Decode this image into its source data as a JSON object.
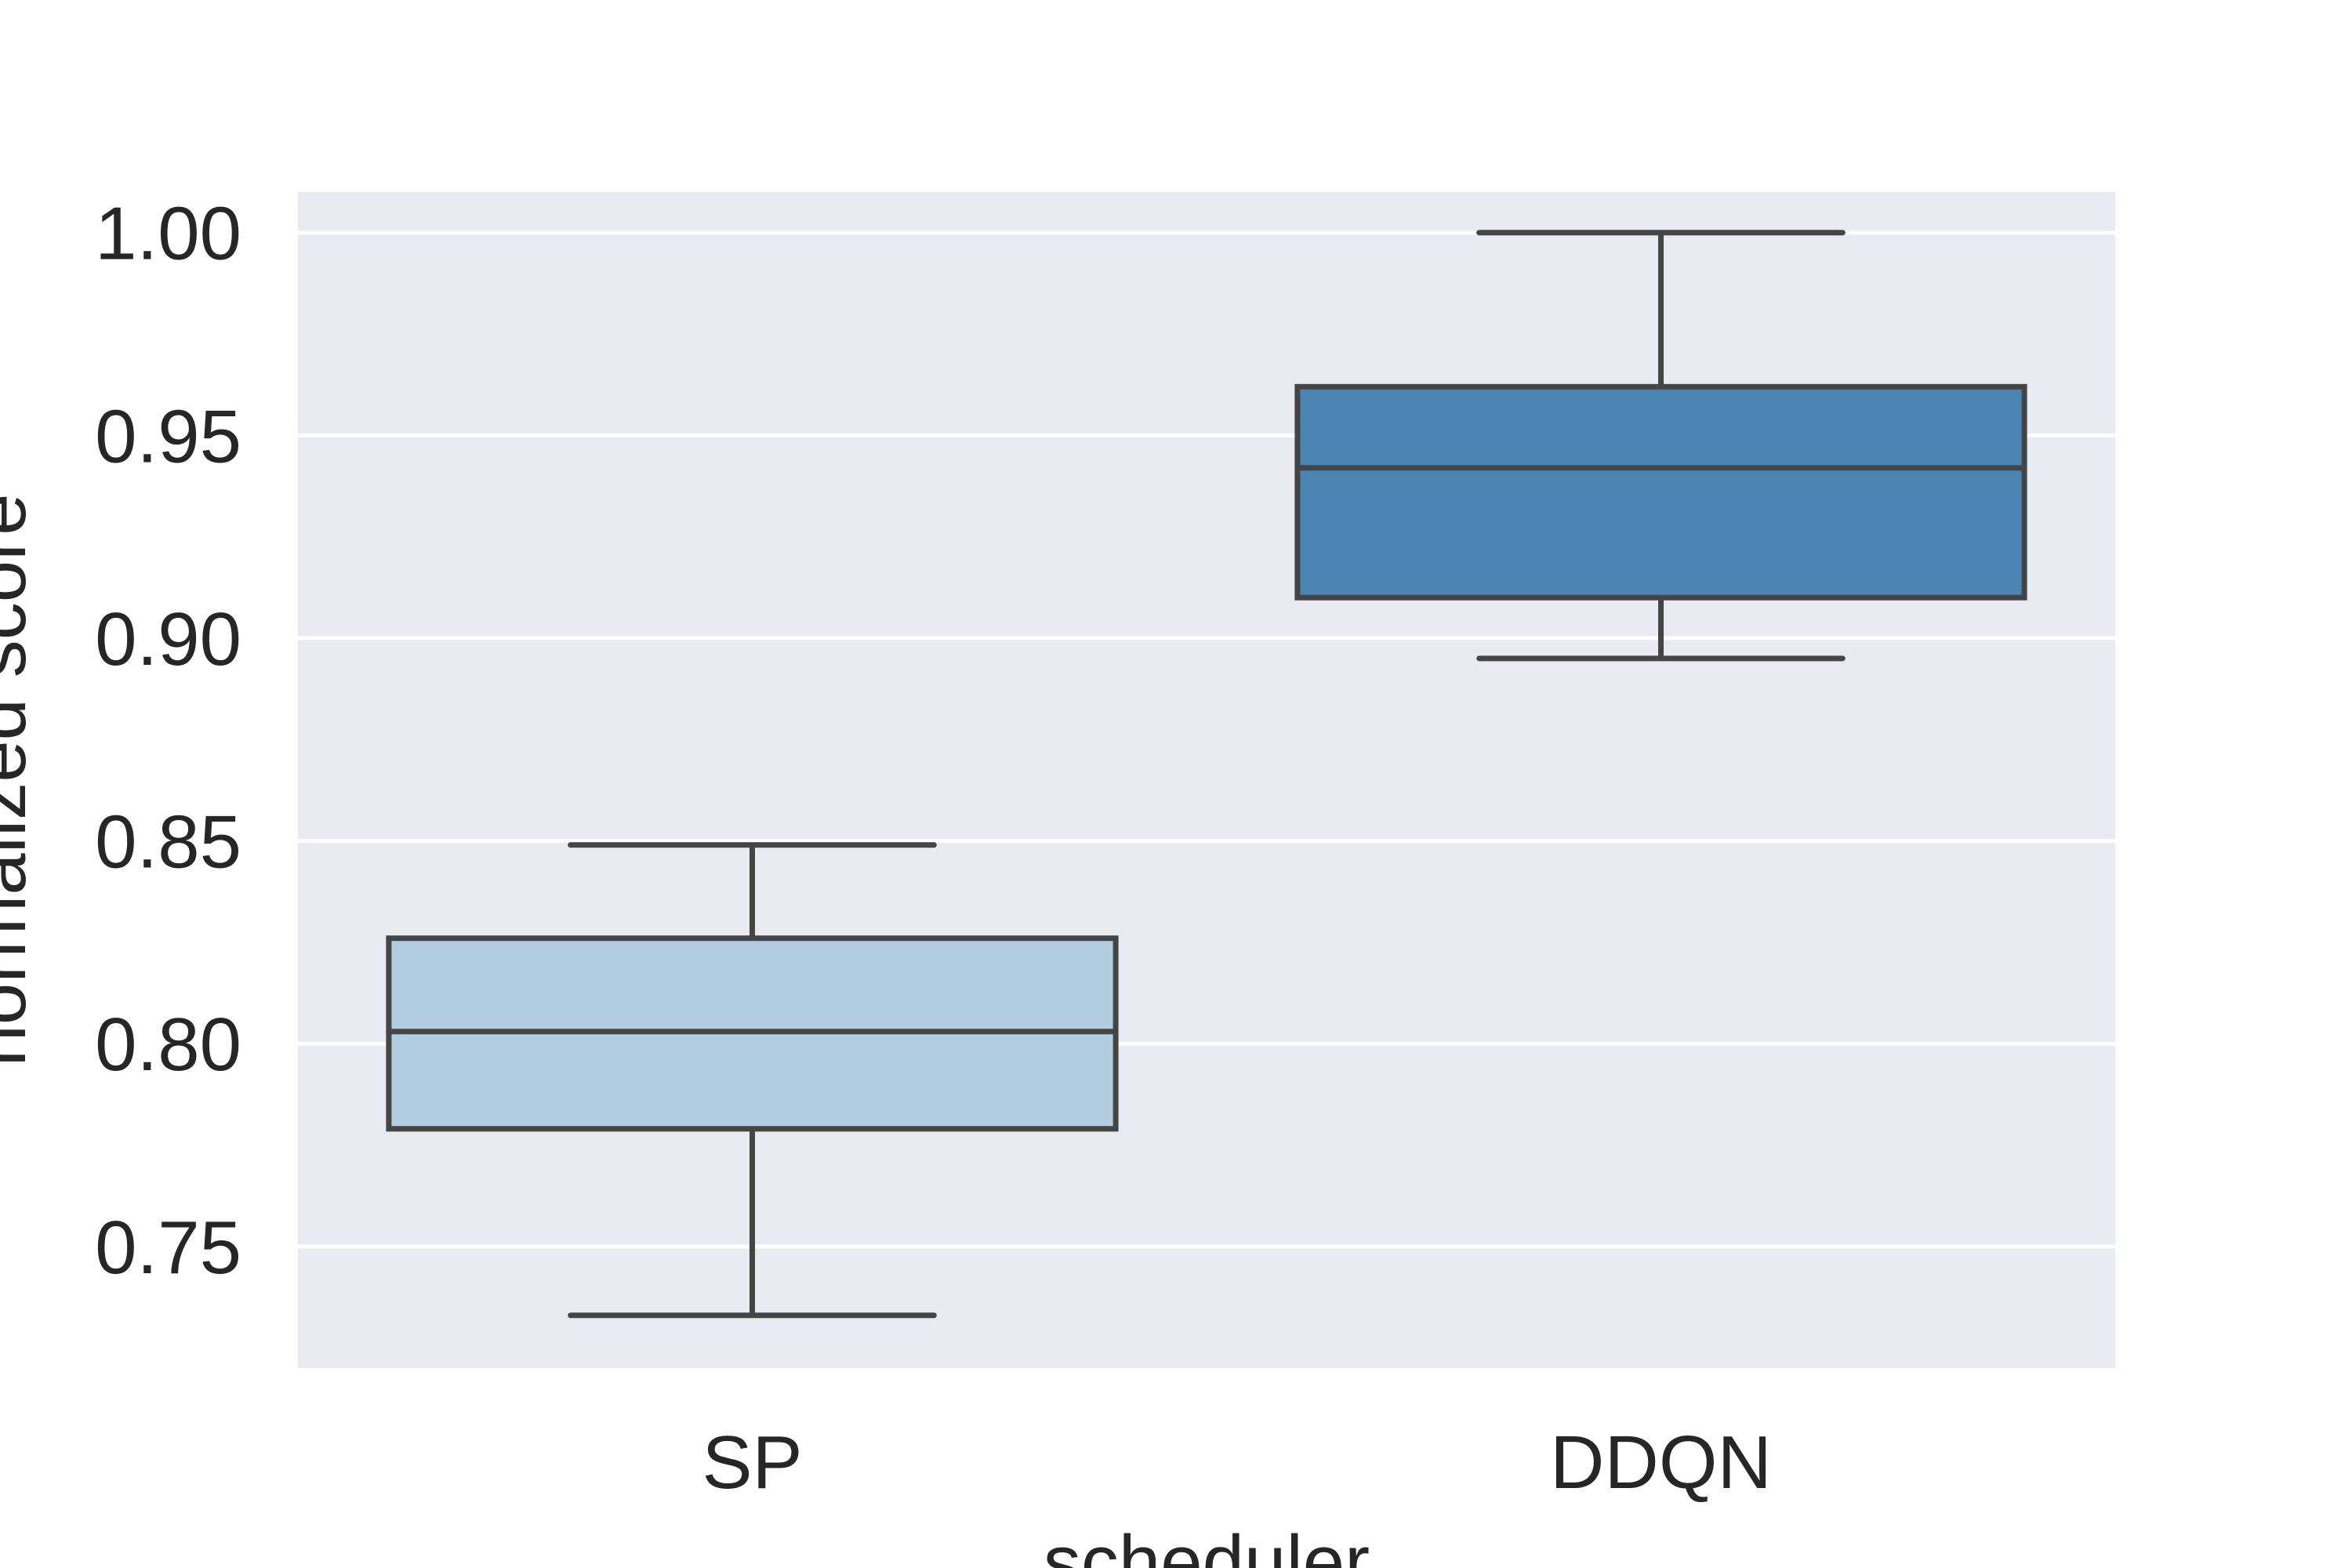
{
  "chart_data": {
    "type": "box",
    "xlabel": "scheduler",
    "ylabel": "normalized score",
    "ylim": [
      0.72,
      1.01
    ],
    "yticks": [
      0.75,
      0.8,
      0.85,
      0.9,
      0.95,
      1.0
    ],
    "ytick_labels": [
      "0.75",
      "0.80",
      "0.85",
      "0.90",
      "0.95",
      "1.00"
    ],
    "categories": [
      "SP",
      "DDQN"
    ],
    "boxes": [
      {
        "category": "SP",
        "whisker_low": 0.733,
        "q1": 0.779,
        "median": 0.803,
        "q3": 0.826,
        "whisker_high": 0.849,
        "color": "#b3cde0"
      },
      {
        "category": "DDQN",
        "whisker_low": 0.895,
        "q1": 0.91,
        "median": 0.942,
        "q3": 0.962,
        "whisker_high": 1.0,
        "color": "#4a84b1"
      }
    ],
    "grid": true,
    "background": "#eaeaf2",
    "line_color": "#454545"
  }
}
